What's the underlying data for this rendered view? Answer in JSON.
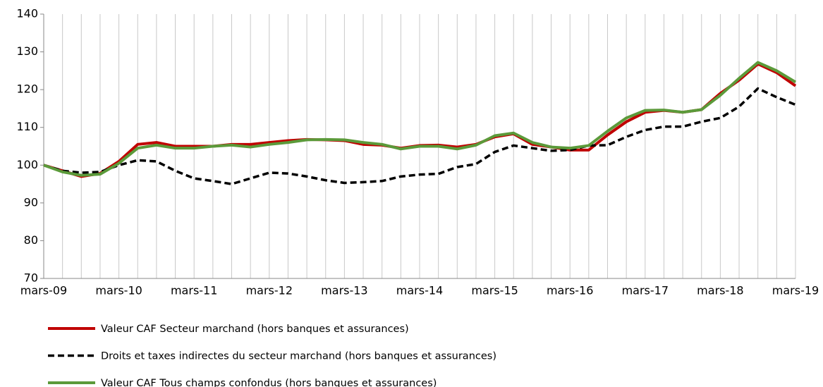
{
  "chart_data": {
    "type": "line",
    "categories": [
      "mars-09",
      null,
      null,
      null,
      "mars-10",
      null,
      null,
      null,
      "mars-11",
      null,
      null,
      null,
      "mars-12",
      null,
      null,
      null,
      "mars-13",
      null,
      null,
      null,
      "mars-14",
      null,
      null,
      null,
      "mars-15",
      null,
      null,
      null,
      "mars-16",
      null,
      null,
      null,
      "mars-17",
      null,
      null,
      null,
      "mars-18",
      null,
      null,
      null,
      "mars-19"
    ],
    "series": [
      {
        "name": "Valeur CAF Secteur marchand (hors banques et assurances)",
        "color": "#c00000",
        "style": "solid",
        "values": [
          100,
          98.5,
          97,
          97.8,
          101,
          105.5,
          106,
          105,
          105,
          105,
          105.5,
          105.5,
          106,
          106.5,
          106.8,
          106.7,
          106.5,
          105.5,
          105.3,
          104.5,
          105.2,
          105.3,
          104.8,
          105.5,
          107.5,
          108.3,
          105.5,
          104.8,
          104,
          104,
          108,
          111.5,
          114,
          114.5,
          114,
          114.7,
          119,
          122.5,
          126.8,
          124.5,
          121
        ]
      },
      {
        "name": "Droits et taxes indirectes du secteur marchand (hors banques et assurances)",
        "color": "#000000",
        "style": "dashed",
        "values": [
          100,
          98.5,
          98,
          98.2,
          100,
          101.3,
          101,
          98.5,
          96.5,
          95.8,
          95,
          96.5,
          98,
          97.8,
          97,
          96,
          95.3,
          95.5,
          95.8,
          97,
          97.5,
          97.7,
          99.5,
          100.3,
          103.5,
          105.2,
          104.5,
          103.8,
          104,
          105.2,
          105.3,
          107.5,
          109.3,
          110.2,
          110.2,
          111.5,
          112.5,
          115.5,
          120.3,
          118,
          116
        ]
      },
      {
        "name": "Valeur CAF Tous champs confondus (hors banques et assurances)",
        "color": "#5b9a3a",
        "style": "solid",
        "values": [
          100,
          98.2,
          97.3,
          97.6,
          100.5,
          104.5,
          105.3,
          104.5,
          104.5,
          105,
          105.3,
          104.8,
          105.5,
          106,
          106.7,
          106.8,
          106.7,
          106,
          105.5,
          104.3,
          105,
          105,
          104.3,
          105.3,
          107.8,
          108.5,
          106,
          104.8,
          104.5,
          105.2,
          109,
          112.5,
          114.5,
          114.6,
          114,
          114.7,
          118.5,
          123,
          127.2,
          125,
          122
        ]
      }
    ],
    "ylim": [
      70,
      140
    ],
    "yticks": [
      70,
      80,
      90,
      100,
      110,
      120,
      130,
      140
    ],
    "grid": true
  }
}
